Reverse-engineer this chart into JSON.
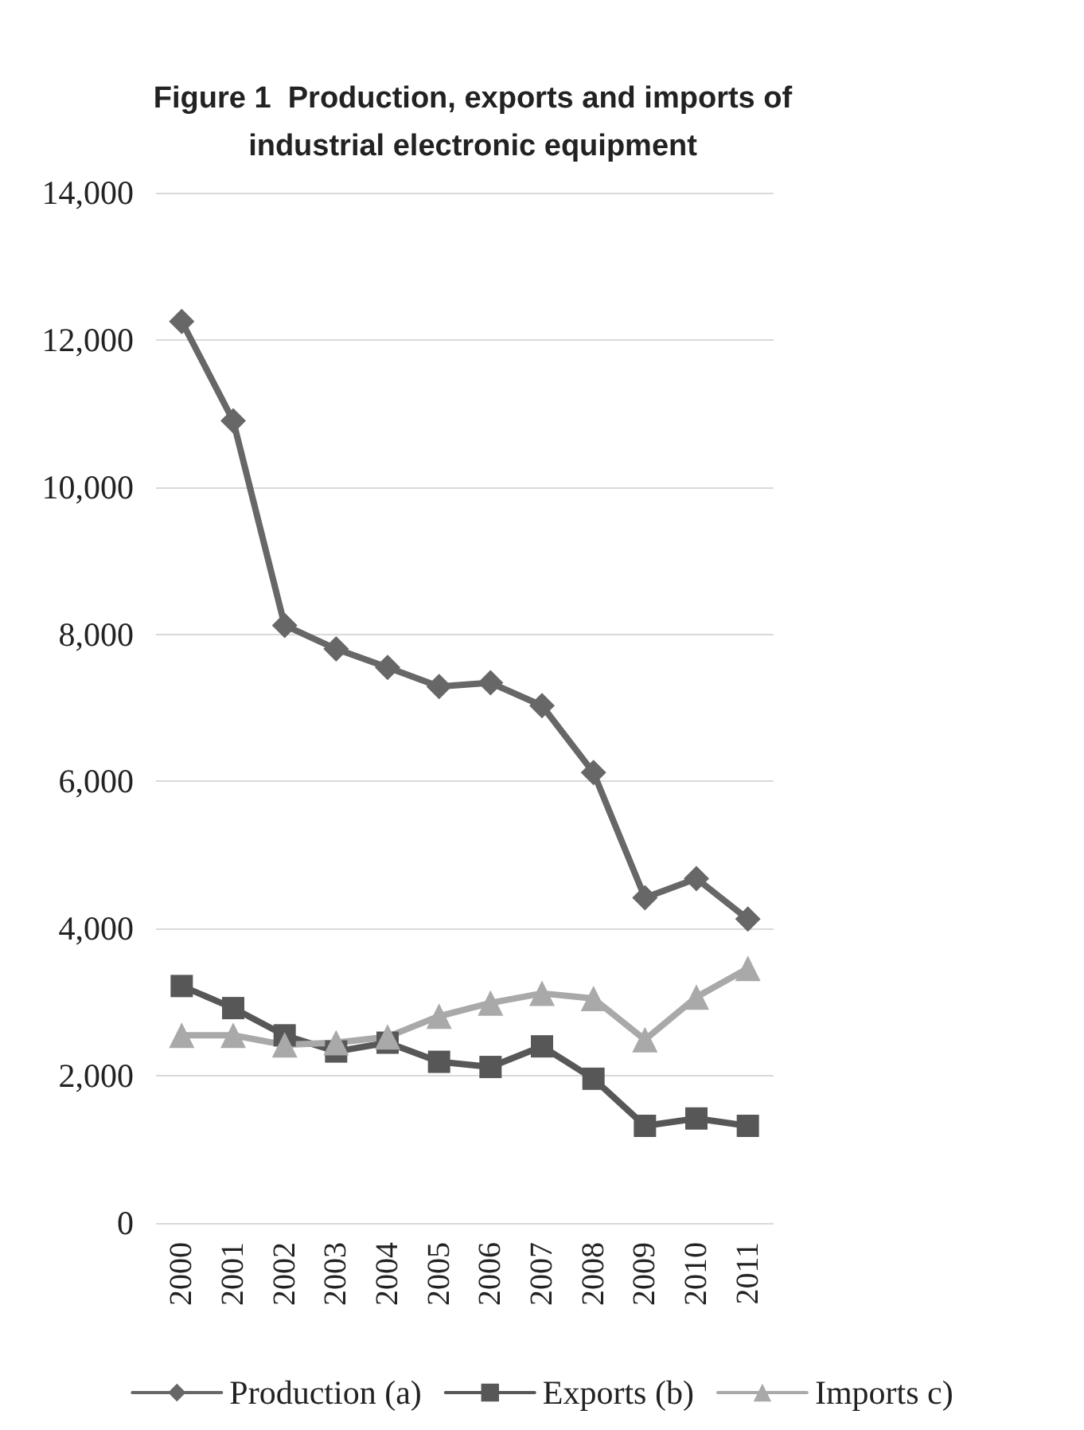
{
  "chart_data": {
    "type": "line",
    "title": "Figure 1  Production, exports and imports of\nindustrial electronic equipment",
    "categories": [
      "2000",
      "2001",
      "2002",
      "2003",
      "2004",
      "2005",
      "2006",
      "2007",
      "2008",
      "2009",
      "2010",
      "2011"
    ],
    "series": [
      {
        "name": "Production (a)",
        "color": "#676767",
        "marker": "diamond",
        "values": [
          12250,
          10900,
          8120,
          7800,
          7550,
          7290,
          7340,
          7030,
          6120,
          4420,
          4680,
          4130
        ]
      },
      {
        "name": "Exports (b)",
        "color": "#575757",
        "marker": "square",
        "values": [
          3220,
          2920,
          2550,
          2330,
          2450,
          2190,
          2120,
          2400,
          1960,
          1320,
          1420,
          1320
        ]
      },
      {
        "name": "Imports c)",
        "color": "#a9a9a9",
        "marker": "triangle",
        "values": [
          2550,
          2550,
          2420,
          2450,
          2530,
          2810,
          2990,
          3120,
          3050,
          2490,
          3070,
          3460
        ]
      }
    ],
    "ylim": [
      0,
      14000
    ],
    "yticks": [
      0,
      {
        "value": 2000,
        "label": "2,000"
      },
      {
        "value": 4000,
        "label": "4,000"
      },
      {
        "value": 6000,
        "label": "6,000"
      },
      {
        "value": 8000,
        "label": "8,000"
      },
      {
        "value": 10000,
        "label": "10,000"
      },
      {
        "value": 12000,
        "label": "12,000"
      },
      {
        "value": 14000,
        "label": "14,000"
      }
    ],
    "grid": "y",
    "legend": "bottom",
    "line_style": "solid"
  }
}
